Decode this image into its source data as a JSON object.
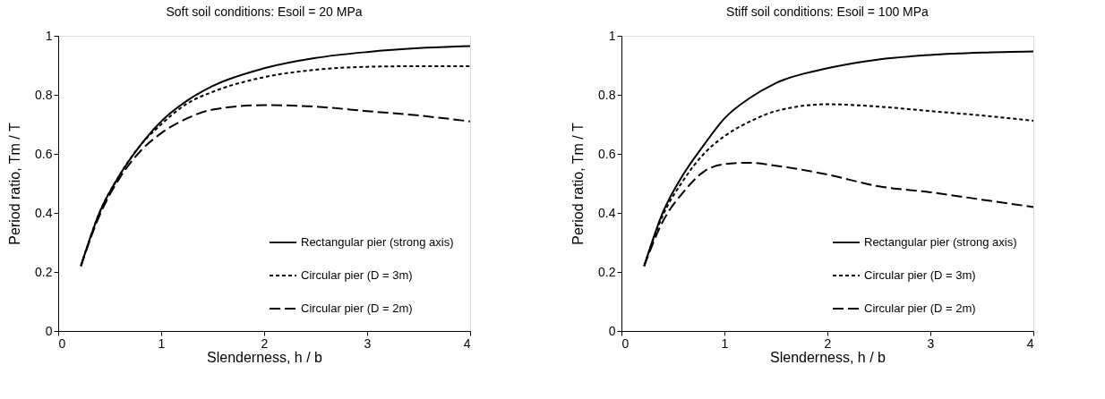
{
  "chart_data": [
    {
      "type": "line",
      "title": "Soft soil conditions: Esoil = 20 MPa",
      "xlabel": "Slenderness,  h / b",
      "ylabel": "Period ratio,  Tm / T",
      "xlim": [
        0,
        4
      ],
      "xticks": [
        0,
        1,
        2,
        3,
        4
      ],
      "ylim": [
        0,
        1
      ],
      "yticks": [
        0,
        0.2,
        0.4,
        0.6,
        0.8,
        1
      ],
      "grid": false,
      "legend": "bottom right",
      "marker": "none",
      "x": [
        0.22,
        0.4,
        0.6,
        0.8,
        1,
        1.25,
        1.5,
        2,
        2.5,
        3,
        3.5,
        4
      ],
      "series": [
        {
          "name": "Rectangular pier (strong axis)",
          "color": "#000000",
          "line_style": "solid",
          "values": [
            0.22,
            0.4,
            0.53,
            0.63,
            0.71,
            0.78,
            0.83,
            0.89,
            0.925,
            0.945,
            0.958,
            0.965
          ]
        },
        {
          "name": "Circular pier (D = 3m)",
          "color": "#000000",
          "line_style": "dotted",
          "values": [
            0.22,
            0.4,
            0.53,
            0.63,
            0.7,
            0.77,
            0.81,
            0.86,
            0.885,
            0.895,
            0.897,
            0.897
          ]
        },
        {
          "name": "Circular pier (D = 2m)",
          "color": "#000000",
          "line_style": "dashed",
          "values": [
            0.22,
            0.39,
            0.52,
            0.61,
            0.67,
            0.72,
            0.75,
            0.765,
            0.76,
            0.745,
            0.73,
            0.71
          ]
        }
      ]
    },
    {
      "type": "line",
      "title": "Stiff soil conditions: Esoil = 100 MPa",
      "xlabel": "Slenderness,  h / b",
      "ylabel": "Period ratio,  Tm / T",
      "xlim": [
        0,
        4
      ],
      "xticks": [
        0,
        1,
        2,
        3,
        4
      ],
      "ylim": [
        0,
        1
      ],
      "yticks": [
        0,
        0.2,
        0.4,
        0.6,
        0.8,
        1
      ],
      "grid": false,
      "legend": "bottom right",
      "marker": "none",
      "x": [
        0.22,
        0.4,
        0.6,
        0.8,
        1,
        1.25,
        1.5,
        2,
        2.5,
        3,
        3.5,
        4
      ],
      "series": [
        {
          "name": "Rectangular pier (strong axis)",
          "color": "#000000",
          "line_style": "solid",
          "values": [
            0.22,
            0.4,
            0.53,
            0.63,
            0.72,
            0.79,
            0.84,
            0.89,
            0.92,
            0.935,
            0.943,
            0.947
          ]
        },
        {
          "name": "Circular pier (D = 3m)",
          "color": "#000000",
          "line_style": "dotted",
          "values": [
            0.22,
            0.39,
            0.51,
            0.6,
            0.66,
            0.71,
            0.745,
            0.768,
            0.76,
            0.745,
            0.73,
            0.712
          ]
        },
        {
          "name": "Circular pier (D = 2m)",
          "color": "#000000",
          "line_style": "dashed",
          "values": [
            0.22,
            0.37,
            0.47,
            0.54,
            0.565,
            0.57,
            0.56,
            0.53,
            0.49,
            0.47,
            0.445,
            0.42
          ]
        }
      ]
    }
  ]
}
